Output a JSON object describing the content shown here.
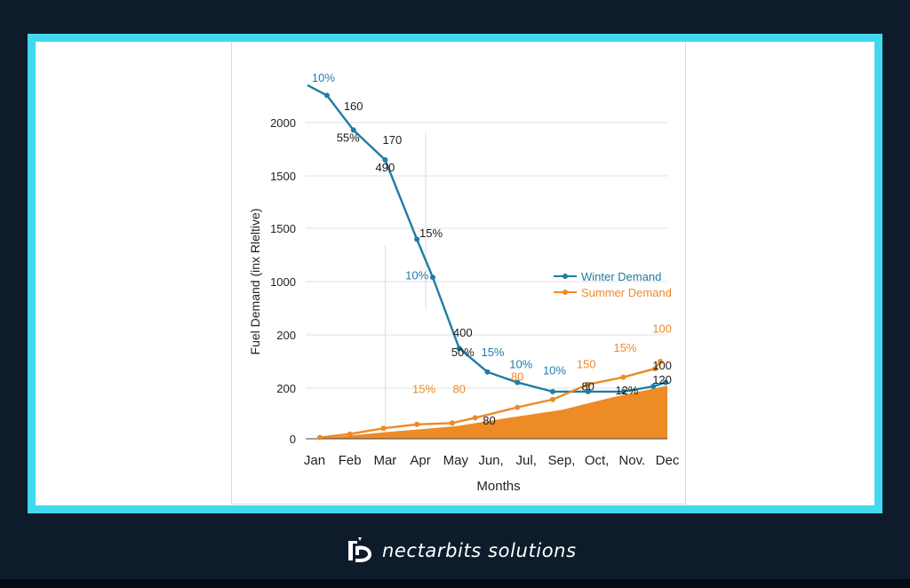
{
  "brand": {
    "name": "nectarbits solutions",
    "icon": "nectarbits-logo-icon"
  },
  "colors": {
    "background": "#0e1b2b",
    "frame": "#41d9ee",
    "winter": "#1f7ca6",
    "summer": "#ec8a28",
    "summer_fill": "#ed8b26"
  },
  "chart_data": {
    "type": "line",
    "title": "",
    "xlabel": "Months",
    "ylabel": "Fuel Demand (inx Rleltive)",
    "categories": [
      "Jan",
      "Feb",
      "Mar",
      "Apr",
      "May",
      "Jun,",
      "Jul,",
      "Sep,",
      "Oct,",
      "Nov.",
      "Dec"
    ],
    "y_tick_labels": [
      "0",
      "200",
      "200",
      "1000",
      "1500",
      "1500",
      "2000"
    ],
    "grid": true,
    "legend": {
      "position": "center-right",
      "entries": [
        "Winter Demand",
        "Summer Demand"
      ]
    },
    "series": [
      {
        "name": "Winter Demand",
        "points": [
          {
            "x": -0.2,
            "y": 2330
          },
          {
            "x": 0.35,
            "y": 2240
          },
          {
            "x": 1.1,
            "y": 1930
          },
          {
            "x": 2.0,
            "y": 1650
          },
          {
            "x": 2.9,
            "y": 1200
          },
          {
            "x": 3.35,
            "y": 1020
          },
          {
            "x": 4.1,
            "y": 490
          },
          {
            "x": 4.9,
            "y": 310
          },
          {
            "x": 5.75,
            "y": 230
          },
          {
            "x": 6.75,
            "y": 180
          },
          {
            "x": 7.75,
            "y": 180
          },
          {
            "x": 8.75,
            "y": 180
          },
          {
            "x": 9.6,
            "y": 200
          },
          {
            "x": 9.95,
            "y": 230
          }
        ]
      },
      {
        "name": "Summer Demand",
        "points": [
          {
            "x": 0.15,
            "y": 5
          },
          {
            "x": 1.0,
            "y": 18
          },
          {
            "x": 1.95,
            "y": 40
          },
          {
            "x": 2.9,
            "y": 55
          },
          {
            "x": 3.9,
            "y": 60
          },
          {
            "x": 4.55,
            "y": 80
          },
          {
            "x": 5.75,
            "y": 120
          },
          {
            "x": 6.75,
            "y": 150
          },
          {
            "x": 7.75,
            "y": 215
          },
          {
            "x": 8.75,
            "y": 270
          },
          {
            "x": 9.65,
            "y": 335
          },
          {
            "x": 9.8,
            "y": 390
          }
        ]
      },
      {
        "name": "Summer area",
        "type": "area",
        "points": [
          {
            "x": 0.0,
            "y": 0
          },
          {
            "x": 2.0,
            "y": 25
          },
          {
            "x": 4.0,
            "y": 48
          },
          {
            "x": 5.5,
            "y": 80
          },
          {
            "x": 7.0,
            "y": 110
          },
          {
            "x": 8.5,
            "y": 160
          },
          {
            "x": 10.0,
            "y": 205
          }
        ]
      }
    ],
    "annotations": [
      {
        "text": "10%",
        "x": 0.25,
        "y": 2360,
        "color": "winter"
      },
      {
        "text": "160",
        "x": 1.1,
        "y": 2110,
        "color": "dark"
      },
      {
        "text": "55%",
        "x": 0.95,
        "y": 1820,
        "color": "dark"
      },
      {
        "text": "170",
        "x": 2.2,
        "y": 1800,
        "color": "dark"
      },
      {
        "text": "490",
        "x": 2.0,
        "y": 1540,
        "color": "dark"
      },
      {
        "text": "15%",
        "x": 3.3,
        "y": 1210,
        "color": "dark"
      },
      {
        "text": "10%",
        "x": 2.9,
        "y": 1010,
        "color": "winter"
      },
      {
        "text": "400",
        "x": 4.2,
        "y": 580,
        "color": "dark"
      },
      {
        "text": "50%",
        "x": 4.2,
        "y": 430,
        "color": "dark"
      },
      {
        "text": "15%",
        "x": 5.05,
        "y": 430,
        "color": "winter"
      },
      {
        "text": "10%",
        "x": 5.85,
        "y": 340,
        "color": "winter"
      },
      {
        "text": "10%",
        "x": 6.8,
        "y": 290,
        "color": "winter"
      },
      {
        "text": "15%",
        "x": 3.1,
        "y": 175,
        "color": "summer"
      },
      {
        "text": "80",
        "x": 4.1,
        "y": 175,
        "color": "summer"
      },
      {
        "text": "80",
        "x": 4.95,
        "y": 55,
        "color": "dark"
      },
      {
        "text": "80",
        "x": 5.75,
        "y": 245,
        "color": "summer"
      },
      {
        "text": "150",
        "x": 7.7,
        "y": 340,
        "color": "summer"
      },
      {
        "text": "80",
        "x": 7.75,
        "y": 185,
        "color": "dark"
      },
      {
        "text": "15%",
        "x": 8.8,
        "y": 465,
        "color": "summer"
      },
      {
        "text": "12%",
        "x": 8.85,
        "y": 170,
        "color": "dark"
      },
      {
        "text": "100",
        "x": 9.85,
        "y": 610,
        "color": "summer"
      },
      {
        "text": "100",
        "x": 9.85,
        "y": 330,
        "color": "dark"
      },
      {
        "text": "120",
        "x": 9.85,
        "y": 220,
        "color": "dark"
      }
    ]
  }
}
